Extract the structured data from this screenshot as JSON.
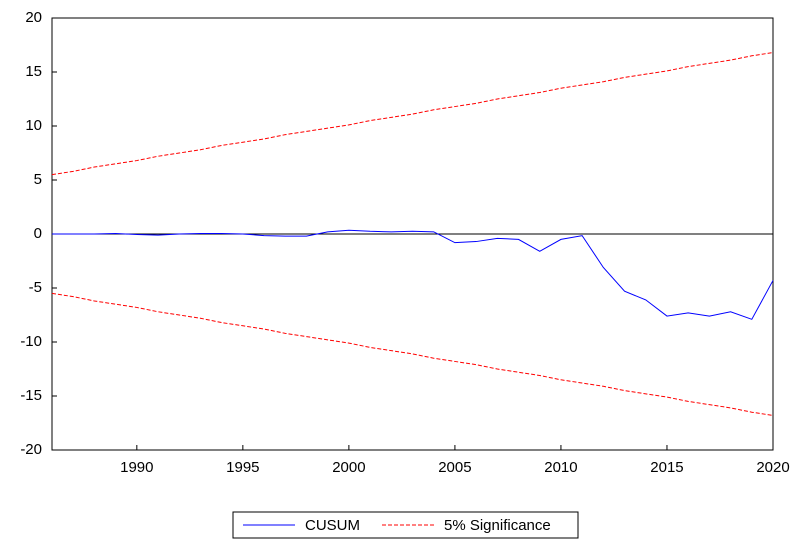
{
  "chart_data": {
    "type": "line",
    "x": [
      1986,
      1987,
      1988,
      1989,
      1990,
      1991,
      1992,
      1993,
      1994,
      1995,
      1996,
      1997,
      1998,
      1999,
      2000,
      2001,
      2002,
      2003,
      2004,
      2005,
      2006,
      2007,
      2008,
      2009,
      2010,
      2011,
      2012,
      2013,
      2014,
      2015,
      2016,
      2017,
      2018,
      2019,
      2020
    ],
    "series": [
      {
        "name": "CUSUM",
        "color": "#0000ff",
        "dash": false,
        "values": [
          0,
          0,
          0,
          0.05,
          -0.05,
          -0.1,
          0,
          0.05,
          0.05,
          0,
          -0.15,
          -0.2,
          -0.2,
          0.2,
          0.35,
          0.25,
          0.2,
          0.25,
          0.2,
          -0.8,
          -0.7,
          -0.4,
          -0.5,
          -1.6,
          -0.5,
          -0.15,
          -3.1,
          -5.3,
          -6.1,
          -7.6,
          -7.3,
          -7.6,
          -7.2,
          -7.9,
          -4.3
        ]
      },
      {
        "name": "5% Significance",
        "color": "#ff0000",
        "dash": true,
        "values": [
          5.5,
          5.8,
          6.2,
          6.5,
          6.8,
          7.2,
          7.5,
          7.8,
          8.2,
          8.5,
          8.8,
          9.2,
          9.5,
          9.8,
          10.1,
          10.5,
          10.8,
          11.1,
          11.5,
          11.8,
          12.1,
          12.5,
          12.8,
          13.1,
          13.5,
          13.8,
          14.1,
          14.5,
          14.8,
          15.1,
          15.5,
          15.8,
          16.1,
          16.5,
          16.8
        ],
        "lower": [
          -5.5,
          -5.8,
          -6.2,
          -6.5,
          -6.8,
          -7.2,
          -7.5,
          -7.8,
          -8.2,
          -8.5,
          -8.8,
          -9.2,
          -9.5,
          -9.8,
          -10.1,
          -10.5,
          -10.8,
          -11.1,
          -11.5,
          -11.8,
          -12.1,
          -12.5,
          -12.8,
          -13.1,
          -13.5,
          -13.8,
          -14.1,
          -14.5,
          -14.8,
          -15.1,
          -15.5,
          -15.8,
          -16.1,
          -16.5,
          -16.8
        ]
      }
    ],
    "xlim": [
      1986,
      2020
    ],
    "xticks": [
      1990,
      1995,
      2000,
      2005,
      2010,
      2015,
      2020
    ],
    "ylim": [
      -20,
      20
    ],
    "yticks": [
      -20,
      -15,
      -10,
      -5,
      0,
      5,
      10,
      15,
      20
    ],
    "zero_line": true,
    "legend": "bottom"
  }
}
